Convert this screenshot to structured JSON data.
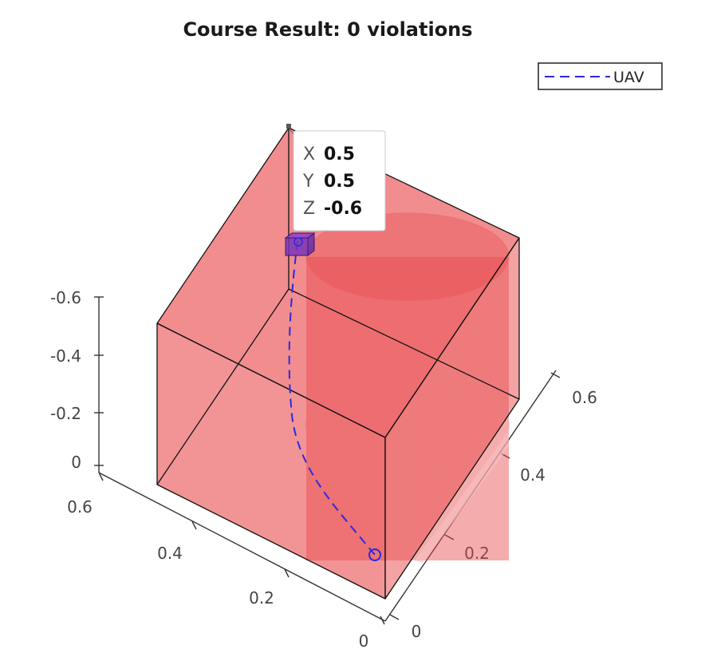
{
  "chart_data": {
    "type": "3d-surface",
    "title": "Course Result: 0 violations",
    "legend": {
      "placement": "top-right",
      "entries": [
        "UAV"
      ]
    },
    "axes": {
      "x": {
        "ticks": [
          "0",
          "0.2",
          "0.4",
          "0.6"
        ]
      },
      "y": {
        "ticks": [
          "0",
          "0.2",
          "0.4",
          "0.6"
        ]
      },
      "z": {
        "ticks": [
          "0",
          "-0.2",
          "-0.4",
          "-0.6"
        ],
        "direction": "reversed"
      }
    },
    "series": [
      {
        "name": "UAV",
        "style": "dashed",
        "color": "#2a2ae0",
        "points": [
          {
            "x": 0.55,
            "y": 0.1,
            "z": 0
          },
          {
            "x": 0.52,
            "y": 0.2,
            "z": -0.15
          },
          {
            "x": 0.5,
            "y": 0.35,
            "z": -0.3
          },
          {
            "x": 0.5,
            "y": 0.45,
            "z": -0.45
          },
          {
            "x": 0.5,
            "y": 0.5,
            "z": -0.6
          }
        ]
      }
    ],
    "obstacles": [
      {
        "shape": "box",
        "color": "#e8474a",
        "alpha": 0.65
      },
      {
        "shape": "cylinder",
        "color": "#e8474a",
        "alpha": 0.55
      }
    ],
    "datatip": {
      "rows": [
        {
          "key": "X",
          "value": "0.5"
        },
        {
          "key": "Y",
          "value": "0.5"
        },
        {
          "key": "Z",
          "value": "-0.6"
        }
      ]
    }
  }
}
